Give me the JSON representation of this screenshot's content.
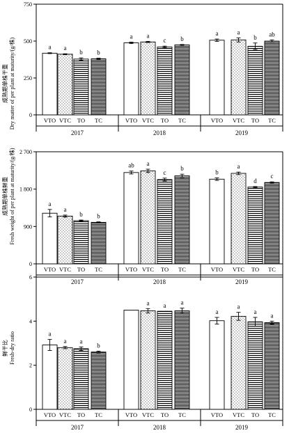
{
  "chart_data": [
    {
      "type": "bar",
      "ylabel": "Dry matter of per plant at maturity/(g/株)",
      "ylabel_cn": "成熟期单株干重",
      "yticks": [
        "0",
        "250",
        "500",
        "750"
      ],
      "ylim": [
        0,
        750
      ],
      "groups": [
        "2017",
        "2018",
        "2019"
      ],
      "categories": [
        "VTO",
        "VTC",
        "TO",
        "TC"
      ],
      "series": [
        {
          "group": "2017",
          "values": [
            418,
            411,
            378,
            380
          ],
          "errors": [
            3,
            3,
            8,
            4
          ],
          "letters": [
            "a",
            "a",
            "b",
            "b"
          ]
        },
        {
          "group": "2018",
          "values": [
            488,
            494,
            460,
            474
          ],
          "errors": [
            5,
            4,
            6,
            3
          ],
          "letters": [
            "a",
            "a",
            "c",
            "b"
          ]
        },
        {
          "group": "2019",
          "values": [
            506,
            508,
            465,
            500
          ],
          "errors": [
            8,
            14,
            22,
            8
          ],
          "letters": [
            "a",
            "a",
            "b",
            "ab"
          ]
        }
      ]
    },
    {
      "type": "bar",
      "ylabel": "Fresh weight of per plant at maturity/(g/株)",
      "ylabel_cn": "成熟期单株鲜重",
      "yticks": [
        "0",
        "900",
        "1 800",
        "2 700"
      ],
      "ylim": [
        0,
        2700
      ],
      "groups": [
        "2017",
        "2018",
        "2019"
      ],
      "categories": [
        "VTO",
        "VTC",
        "TO",
        "TC"
      ],
      "series": [
        {
          "group": "2017",
          "values": [
            1220,
            1150,
            1040,
            1000
          ],
          "errors": [
            90,
            25,
            15,
            12
          ],
          "letters": [
            "a",
            "a",
            "b",
            "b"
          ]
        },
        {
          "group": "2018",
          "values": [
            2200,
            2240,
            2030,
            2120
          ],
          "errors": [
            35,
            40,
            35,
            40
          ],
          "letters": [
            "ab",
            "a",
            "c",
            "b"
          ]
        },
        {
          "group": "2019",
          "values": [
            2040,
            2180,
            1850,
            1960
          ],
          "errors": [
            30,
            30,
            12,
            15
          ],
          "letters": [
            "b",
            "a",
            "d",
            "c"
          ]
        }
      ]
    },
    {
      "type": "bar",
      "ylabel": "Fresh-dry ratio",
      "ylabel_cn": "鲜干比",
      "yticks": [
        "0",
        "2",
        "4",
        "6"
      ],
      "ylim": [
        0,
        6
      ],
      "groups": [
        "2017",
        "2018",
        "2019"
      ],
      "categories": [
        "VTO",
        "VTC",
        "TO",
        "TC"
      ],
      "series": [
        {
          "group": "2017",
          "values": [
            2.92,
            2.8,
            2.75,
            2.6
          ],
          "errors": [
            0.25,
            0.05,
            0.08,
            0.04
          ],
          "letters": [
            "a",
            "a",
            "a",
            "b"
          ]
        },
        {
          "group": "2018",
          "values": [
            4.5,
            4.47,
            4.45,
            4.47
          ],
          "errors": [
            0,
            0.1,
            0,
            0.12
          ],
          "letters": [
            "",
            "a",
            "a",
            "a"
          ]
        },
        {
          "group": "2019",
          "values": [
            4.02,
            4.22,
            3.97,
            3.93
          ],
          "errors": [
            0.15,
            0.18,
            0.2,
            0.07
          ],
          "letters": [
            "a",
            "a",
            "a",
            "a"
          ]
        }
      ]
    }
  ]
}
